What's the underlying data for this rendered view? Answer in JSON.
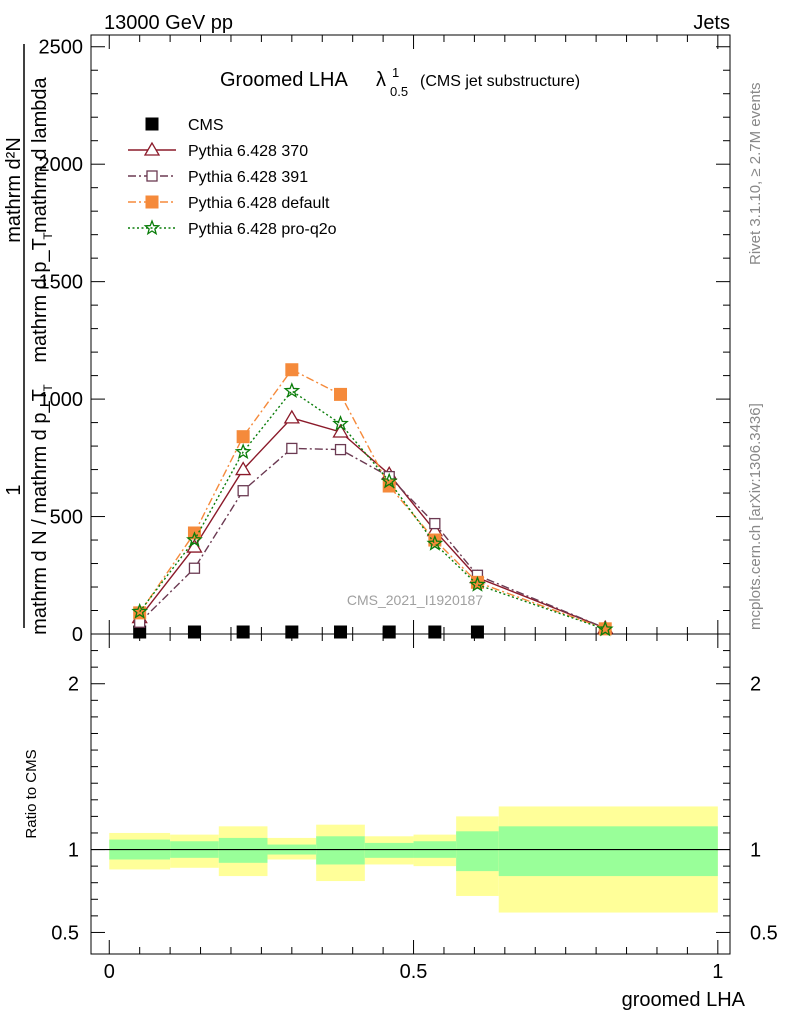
{
  "header": {
    "left": "13000 GeV pp",
    "right": "Jets"
  },
  "side_labels": {
    "rivet": "Rivet 3.1.10, ≥ 2.7M events",
    "mcplots": "mcplots.cern.ch [arXiv:1306.3436]"
  },
  "chart_data": [
    {
      "type": "line",
      "title_main": "Groomed LHA",
      "title_symbol": "λ",
      "title_sup": "1",
      "title_sub": "0.5",
      "title_suffix": "(CMS jet substructure)",
      "ylabel_numerator": "mathrm d²N",
      "ylabel_denominator": "mathrm d p_T mathrm d lambda",
      "ylabel_denominator_T": "T",
      "ylabel_outer_numerator": "1",
      "ylabel_outer_denominator": "mathrm d N / mathrm d p_T",
      "ylabel_outer_denominator_T": "T",
      "watermark": "CMS_2021_I1920187",
      "ylim": [
        0,
        2550
      ],
      "xlim": [
        -0.03,
        1.02
      ],
      "yticks": [
        0,
        500,
        1000,
        1500,
        2000,
        2500
      ],
      "ytick_labels": [
        "0",
        "500",
        "1000",
        "1500",
        "2000",
        "2500"
      ],
      "legend_position": "top-left",
      "series": [
        {
          "name": "CMS",
          "color": "#000000",
          "marker": "square-filled",
          "line": "none",
          "points": [
            [
              0.05,
              0
            ],
            [
              0.14,
              0
            ],
            [
              0.22,
              0
            ],
            [
              0.3,
              0
            ],
            [
              0.38,
              0
            ],
            [
              0.46,
              0
            ],
            [
              0.535,
              0
            ],
            [
              0.605,
              0
            ]
          ]
        },
        {
          "name": "Pythia 6.428 370",
          "color": "#8b1a2a",
          "marker": "triangle-open",
          "line": "solid",
          "points": [
            [
              0.05,
              70
            ],
            [
              0.14,
              370
            ],
            [
              0.22,
              700
            ],
            [
              0.3,
              920
            ],
            [
              0.38,
              860
            ],
            [
              0.46,
              680
            ],
            [
              0.535,
              440
            ],
            [
              0.605,
              240
            ],
            [
              0.815,
              25
            ]
          ]
        },
        {
          "name": "Pythia 6.428 391",
          "color": "#6b3a52",
          "marker": "square-open",
          "line": "dashdot",
          "points": [
            [
              0.05,
              50
            ],
            [
              0.14,
              280
            ],
            [
              0.22,
              610
            ],
            [
              0.3,
              790
            ],
            [
              0.38,
              785
            ],
            [
              0.46,
              670
            ],
            [
              0.535,
              470
            ],
            [
              0.605,
              250
            ],
            [
              0.815,
              25
            ]
          ]
        },
        {
          "name": "Pythia 6.428 default",
          "color": "#f58a3b",
          "marker": "square-filled",
          "line": "dashdot",
          "points": [
            [
              0.05,
              90
            ],
            [
              0.14,
              430
            ],
            [
              0.22,
              840
            ],
            [
              0.3,
              1125
            ],
            [
              0.38,
              1020
            ],
            [
              0.46,
              630
            ],
            [
              0.535,
              400
            ],
            [
              0.605,
              220
            ],
            [
              0.815,
              22
            ]
          ]
        },
        {
          "name": "Pythia 6.428 pro-q2o",
          "color": "#0a7d0a",
          "marker": "star",
          "line": "dotted",
          "points": [
            [
              0.05,
              95
            ],
            [
              0.14,
              400
            ],
            [
              0.22,
              775
            ],
            [
              0.3,
              1035
            ],
            [
              0.38,
              895
            ],
            [
              0.46,
              650
            ],
            [
              0.535,
              385
            ],
            [
              0.605,
              210
            ],
            [
              0.815,
              20
            ]
          ]
        }
      ]
    },
    {
      "type": "area",
      "ylabel": "Ratio to CMS",
      "xlabel": "groomed LHA",
      "ylim": [
        0.37,
        2.3
      ],
      "xlim": [
        -0.03,
        1.02
      ],
      "yticks": [
        0.5,
        1,
        2
      ],
      "ytick_labels": [
        "0.5",
        "1",
        "2"
      ],
      "xticks": [
        0,
        0.5,
        1
      ],
      "xtick_labels": [
        "0",
        "0.5",
        "1"
      ],
      "reference_line": 1,
      "bands": [
        {
          "x0": 0.0,
          "x1": 0.1,
          "inner": [
            0.94,
            1.06
          ],
          "outer": [
            0.88,
            1.1
          ]
        },
        {
          "x0": 0.1,
          "x1": 0.18,
          "inner": [
            0.95,
            1.05
          ],
          "outer": [
            0.89,
            1.09
          ]
        },
        {
          "x0": 0.18,
          "x1": 0.26,
          "inner": [
            0.92,
            1.07
          ],
          "outer": [
            0.84,
            1.14
          ]
        },
        {
          "x0": 0.26,
          "x1": 0.34,
          "inner": [
            0.97,
            1.03
          ],
          "outer": [
            0.94,
            1.07
          ]
        },
        {
          "x0": 0.34,
          "x1": 0.42,
          "inner": [
            0.91,
            1.08
          ],
          "outer": [
            0.81,
            1.15
          ]
        },
        {
          "x0": 0.42,
          "x1": 0.5,
          "inner": [
            0.95,
            1.04
          ],
          "outer": [
            0.91,
            1.08
          ]
        },
        {
          "x0": 0.5,
          "x1": 0.57,
          "inner": [
            0.95,
            1.05
          ],
          "outer": [
            0.9,
            1.09
          ]
        },
        {
          "x0": 0.57,
          "x1": 0.64,
          "inner": [
            0.87,
            1.11
          ],
          "outer": [
            0.72,
            1.2
          ]
        },
        {
          "x0": 0.64,
          "x1": 1.0,
          "inner": [
            0.84,
            1.14
          ],
          "outer": [
            0.62,
            1.26
          ]
        }
      ],
      "inner_color": "#99ff99",
      "outer_color": "#ffff99"
    }
  ]
}
